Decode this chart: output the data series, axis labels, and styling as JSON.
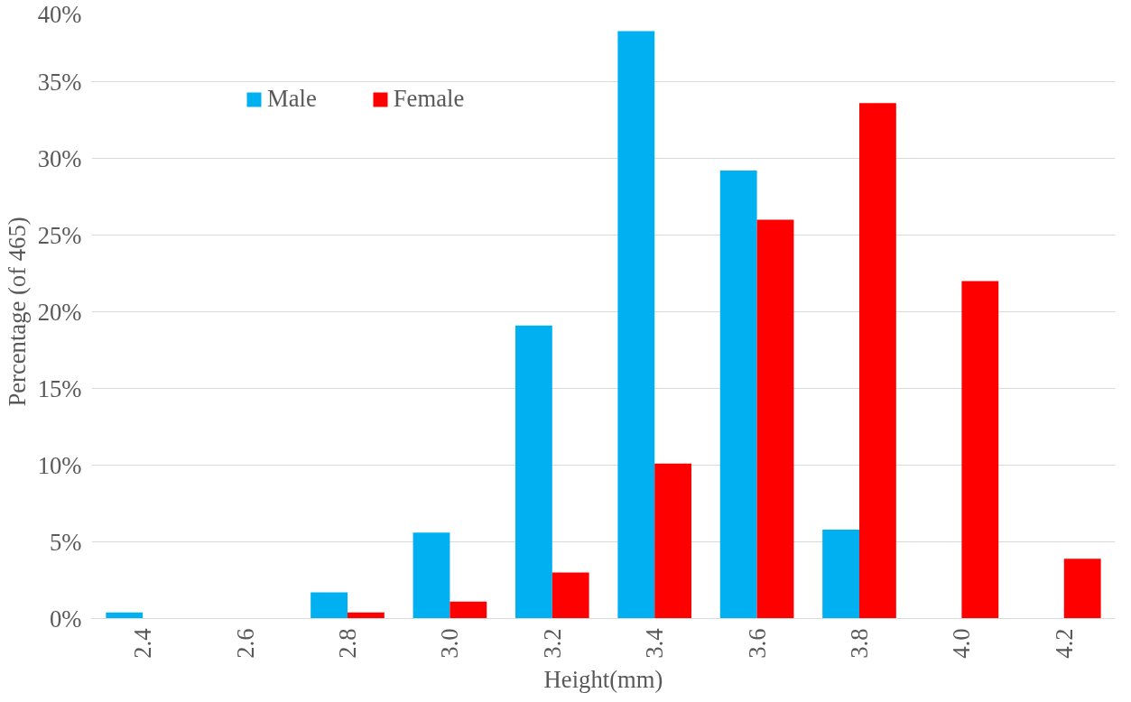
{
  "chart_data": {
    "type": "bar",
    "xlabel": "Height(mm)",
    "ylabel": "Percentage (of 465)",
    "categories": [
      "2.4",
      "2.6",
      "2.8",
      "3.0",
      "3.2",
      "3.4",
      "3.6",
      "3.8",
      "4.0",
      "4.2"
    ],
    "series": [
      {
        "name": "Male",
        "color": "#00b0f0",
        "values": [
          0.4,
          0,
          1.7,
          5.6,
          19.1,
          38.3,
          29.2,
          5.8,
          0,
          0
        ]
      },
      {
        "name": "Female",
        "color": "#ff0000",
        "values": [
          0,
          0,
          0.4,
          1.1,
          3.0,
          10.1,
          26.0,
          33.6,
          22.0,
          3.9
        ]
      }
    ],
    "ylim": [
      0,
      40
    ],
    "yticks": [
      {
        "value": 0,
        "label": "0%"
      },
      {
        "value": 5,
        "label": "5%"
      },
      {
        "value": 10,
        "label": "10%"
      },
      {
        "value": 15,
        "label": "15%"
      },
      {
        "value": 20,
        "label": "20%"
      },
      {
        "value": 25,
        "label": "25%"
      },
      {
        "value": 30,
        "label": "30%"
      },
      {
        "value": 35,
        "label": "35%"
      },
      {
        "value": 40,
        "label": "40%"
      }
    ],
    "grid": "y",
    "legend": "top left"
  }
}
